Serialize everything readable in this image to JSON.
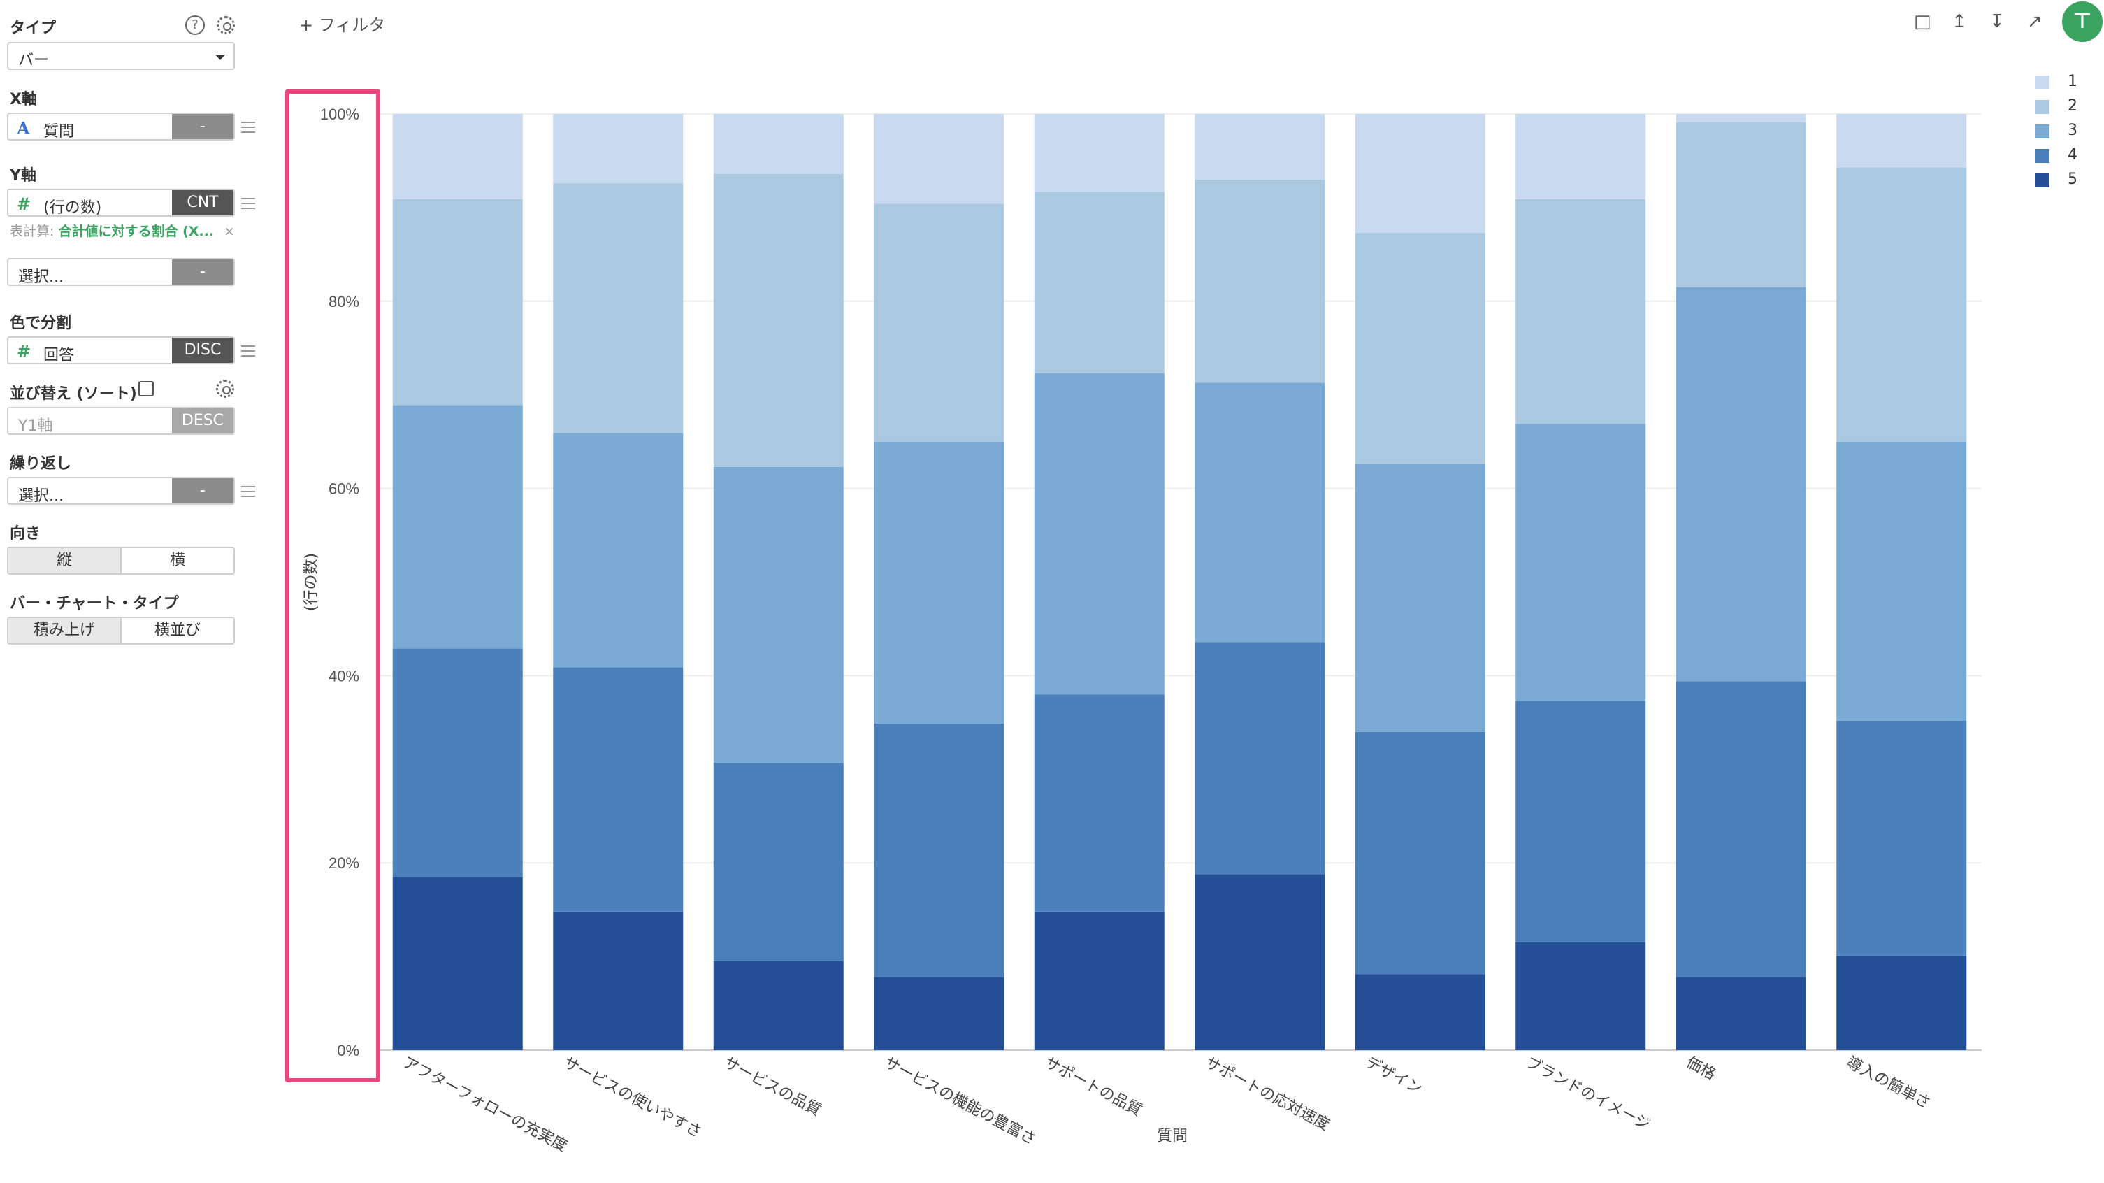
{
  "sidebar": {
    "type_title": "タイプ",
    "type_value": "バー",
    "x_axis_title": "X軸",
    "x_axis_field": "質問",
    "x_axis_btn": "-",
    "y_axis_title": "Y軸",
    "y_axis_field": "(行の数)",
    "y_axis_btn": "CNT",
    "calc_prefix": "表計算:",
    "calc_value": "合計値に対する割合 (X...",
    "calc_close": "×",
    "y2_placeholder": "選択...",
    "y2_btn": "-",
    "color_title": "色で分割",
    "color_field": "回答",
    "color_btn": "DISC",
    "sort_title": "並び替え (ソート)",
    "sort_field": "Y1軸",
    "sort_btn": "DESC",
    "repeat_title": "繰り返し",
    "repeat_placeholder": "選択...",
    "repeat_btn": "-",
    "orient_title": "向き",
    "orient_options": [
      "縦",
      "横"
    ],
    "bar_type_title": "バー・チャート・タイプ",
    "bar_type_options": [
      "積み上げ",
      "横並び"
    ],
    "help_icon": "?"
  },
  "toolbar": {
    "filter_label": "+ フィルタ",
    "icons": [
      "comment-icon",
      "upload-icon",
      "download-icon",
      "expand-icon",
      "pin-icon"
    ]
  },
  "colors": {
    "s1": "#c9d9ef",
    "s2": "#aac8e0",
    "s3": "#7aaad3",
    "s4": "#4a7fba",
    "s5": "#254f96",
    "highlight": "#e8467c",
    "accent_green": "#3aa35f"
  },
  "chart_data": {
    "type": "bar",
    "stacked": true,
    "normalized": true,
    "categories": [
      "アフターフォローの充実度",
      "サービスの使いやすさ",
      "サービスの品質",
      "サービスの機能の豊富さ",
      "サポートの品質",
      "サポートの応対速度",
      "デザイン",
      "ブランドのイメージ",
      "価格",
      "導入の簡単さ"
    ],
    "series": [
      {
        "name": "5",
        "values": [
          18.5,
          14.8,
          9.5,
          7.8,
          14.8,
          18.8,
          8.1,
          11.5,
          7.8,
          10.1
        ]
      },
      {
        "name": "4",
        "values": [
          24.4,
          26.1,
          21.2,
          27.1,
          23.2,
          24.8,
          25.9,
          25.8,
          31.6,
          25.1
        ]
      },
      {
        "name": "3",
        "values": [
          26.0,
          25.0,
          31.6,
          30.1,
          34.3,
          27.7,
          28.6,
          29.6,
          42.1,
          29.8
        ]
      },
      {
        "name": "2",
        "values": [
          22.0,
          26.7,
          31.3,
          25.4,
          19.4,
          21.7,
          24.7,
          24.0,
          17.6,
          29.3
        ]
      },
      {
        "name": "1",
        "values": [
          9.1,
          7.4,
          6.4,
          9.6,
          8.3,
          7.0,
          12.7,
          9.1,
          0.9,
          5.7
        ]
      }
    ],
    "y_ticks": [
      "0%",
      "20%",
      "40%",
      "60%",
      "80%",
      "100%"
    ],
    "ylim": [
      0,
      100
    ],
    "ylabel": "(行の数)",
    "xlabel": "質問",
    "legend": [
      "1",
      "2",
      "3",
      "4",
      "5"
    ],
    "legend_position": "top-right",
    "grid": true
  }
}
